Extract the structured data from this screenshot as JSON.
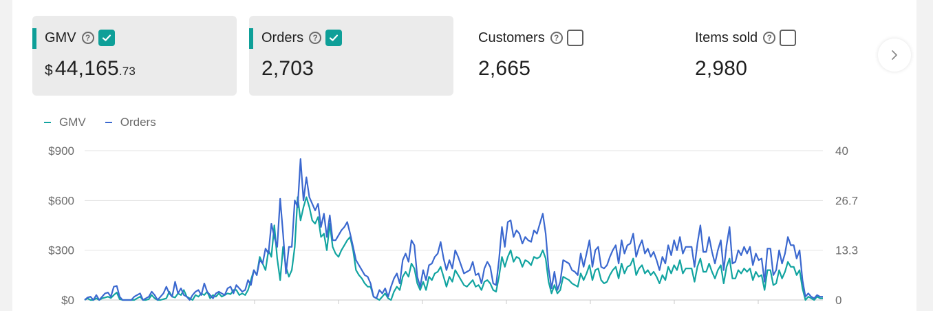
{
  "metrics": [
    {
      "label": "GMV",
      "currency": "$",
      "value_main": "44,165",
      "value_decimal": ".73",
      "checked": true,
      "selected": true
    },
    {
      "label": "Orders",
      "currency": "",
      "value_main": "2,703",
      "value_decimal": "",
      "checked": true,
      "selected": true
    },
    {
      "label": "Customers",
      "currency": "",
      "value_main": "2,665",
      "value_decimal": "",
      "checked": false,
      "selected": false
    },
    {
      "label": "Items sold",
      "currency": "",
      "value_main": "2,980",
      "value_decimal": "",
      "checked": false,
      "selected": false
    }
  ],
  "help_glyph": "?",
  "next_button_icon": "chevron-right-icon",
  "colors": {
    "gmv": "#12a4a0",
    "orders": "#3b68cf",
    "accent": "#0e9f98",
    "grid": "#e3e3e3",
    "axis_text": "#6b6b6b"
  },
  "chart_data": {
    "type": "line",
    "legend": [
      "GMV",
      "Orders"
    ],
    "legend_placement": "top-left",
    "grid": true,
    "left_axis": {
      "ticks": [
        "$0",
        "$300",
        "$600",
        "$900"
      ],
      "range": [
        0,
        900
      ]
    },
    "right_axis": {
      "ticks": [
        "0",
        "13.3",
        "26.7",
        "40"
      ],
      "range": [
        0,
        40
      ]
    },
    "series": [
      {
        "name": "GMV",
        "axis": "left",
        "values": [
          0,
          10,
          0,
          0,
          10,
          0,
          10,
          15,
          20,
          12,
          30,
          45,
          5,
          0,
          0,
          0,
          0,
          0,
          10,
          20,
          0,
          0,
          5,
          30,
          10,
          0,
          0,
          5,
          10,
          50,
          20,
          15,
          40,
          30,
          60,
          20,
          10,
          0,
          30,
          20,
          40,
          30,
          50,
          10,
          30,
          20,
          40,
          20,
          30,
          40,
          35,
          60,
          60,
          30,
          40,
          30,
          60,
          120,
          180,
          150,
          260,
          220,
          180,
          300,
          260,
          450,
          250,
          120,
          320,
          200,
          140,
          180,
          320,
          620,
          480,
          560,
          620,
          560,
          480,
          460,
          500,
          380,
          400,
          300,
          460,
          320,
          280,
          260,
          300,
          330,
          360,
          380,
          300,
          180,
          150,
          130,
          100,
          80,
          80,
          20,
          10,
          0,
          20,
          40,
          10,
          0,
          50,
          80,
          60,
          140,
          170,
          140,
          220,
          190,
          100,
          60,
          110,
          60,
          140,
          120,
          160,
          170,
          200,
          140,
          80,
          140,
          110,
          180,
          150,
          120,
          90,
          80,
          100,
          120,
          80,
          90,
          60,
          110,
          120,
          100,
          60,
          50,
          140,
          260,
          200,
          260,
          300,
          230,
          260,
          250,
          200,
          240,
          230,
          210,
          260,
          250,
          260,
          300,
          250,
          110,
          40,
          90,
          40,
          60,
          140,
          130,
          120,
          100,
          90,
          80,
          160,
          120,
          160,
          210,
          120,
          180,
          190,
          120,
          100,
          110,
          150,
          180,
          200,
          130,
          220,
          160,
          200,
          210,
          250,
          150,
          190,
          210,
          160,
          180,
          150,
          170,
          140,
          100,
          150,
          120,
          200,
          160,
          210,
          180,
          240,
          160,
          190,
          190,
          190,
          110,
          200,
          250,
          170,
          170,
          220,
          170,
          130,
          180,
          210,
          100,
          200,
          250,
          130,
          130,
          180,
          160,
          190,
          170,
          190,
          120,
          170,
          140,
          150,
          60,
          180,
          180,
          90,
          100,
          180,
          130,
          170,
          230,
          200,
          200,
          150,
          180,
          70,
          0,
          20,
          10,
          0,
          20,
          10,
          10
        ]
      },
      {
        "name": "Orders",
        "axis": "left",
        "values": [
          0,
          15,
          20,
          0,
          30,
          0,
          20,
          40,
          45,
          20,
          80,
          85,
          20,
          0,
          0,
          0,
          0,
          20,
          30,
          40,
          0,
          10,
          20,
          50,
          30,
          0,
          20,
          40,
          80,
          40,
          20,
          110,
          40,
          70,
          30,
          20,
          0,
          30,
          50,
          60,
          30,
          100,
          50,
          30,
          10,
          40,
          50,
          40,
          30,
          70,
          80,
          40,
          90,
          70,
          50,
          60,
          120,
          90,
          180,
          150,
          240,
          220,
          310,
          280,
          460,
          380,
          320,
          610,
          400,
          160,
          320,
          320,
          600,
          560,
          850,
          600,
          740,
          620,
          580,
          540,
          580,
          440,
          520,
          380,
          510,
          360,
          360,
          390,
          420,
          440,
          470,
          400,
          320,
          240,
          210,
          180,
          150,
          140,
          100,
          20,
          10,
          60,
          40,
          70,
          20,
          80,
          130,
          160,
          100,
          240,
          280,
          230,
          360,
          330,
          140,
          80,
          180,
          120,
          210,
          220,
          260,
          280,
          350,
          250,
          180,
          240,
          190,
          300,
          260,
          210,
          160,
          170,
          180,
          230,
          150,
          160,
          100,
          190,
          230,
          200,
          100,
          90,
          240,
          440,
          320,
          470,
          480,
          380,
          420,
          400,
          340,
          380,
          360,
          350,
          420,
          400,
          460,
          520,
          400,
          190,
          70,
          170,
          60,
          110,
          240,
          230,
          220,
          180,
          170,
          150,
          280,
          200,
          280,
          360,
          200,
          300,
          320,
          200,
          190,
          210,
          260,
          300,
          330,
          220,
          360,
          280,
          330,
          340,
          400,
          260,
          320,
          360,
          280,
          310,
          260,
          290,
          240,
          180,
          260,
          220,
          330,
          270,
          360,
          300,
          380,
          280,
          320,
          320,
          320,
          200,
          340,
          450,
          290,
          290,
          380,
          290,
          220,
          300,
          360,
          180,
          330,
          440,
          220,
          230,
          300,
          270,
          320,
          280,
          320,
          210,
          280,
          240,
          250,
          110,
          310,
          310,
          150,
          180,
          300,
          220,
          280,
          380,
          330,
          330,
          250,
          300,
          120,
          20,
          40,
          20,
          10,
          30,
          20,
          20
        ]
      }
    ]
  }
}
